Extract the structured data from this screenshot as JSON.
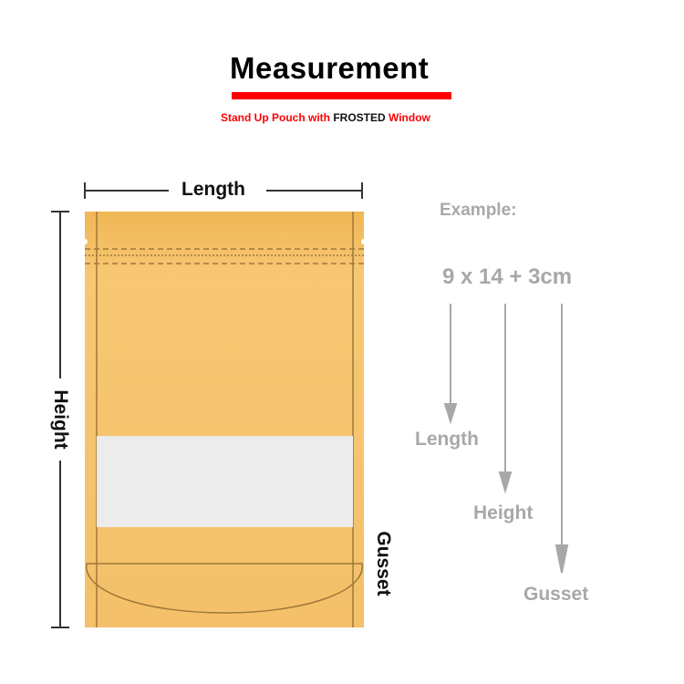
{
  "title": "Measurement",
  "subtitle": {
    "part1": "Stand Up Pouch with ",
    "part2": "FROSTED",
    "part3": " Window"
  },
  "labels": {
    "length": "Length",
    "height": "Height",
    "gusset": "Gusset"
  },
  "example": {
    "heading": "Example:",
    "formula": "9 x 14 + 3cm",
    "length": "Length",
    "height": "Height",
    "gusset": "Gusset"
  },
  "colors": {
    "accent": "#ff0000",
    "pouch": "#f5c169",
    "window": "#ececec",
    "example_text": "#a8a8a8"
  }
}
